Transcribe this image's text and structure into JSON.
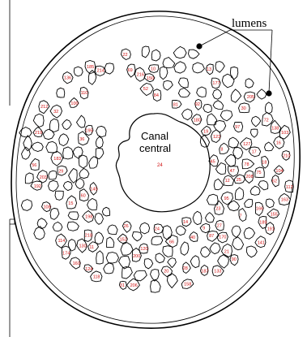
{
  "annotation": {
    "label": "lumens"
  },
  "canal": {
    "line1": "Canal",
    "line2": "central",
    "number": "24"
  },
  "cells": [
    {
      "n": "7"
    },
    {
      "n": "8"
    },
    {
      "n": "9"
    },
    {
      "n": "10"
    },
    {
      "n": "11"
    },
    {
      "n": "12"
    },
    {
      "n": "13"
    },
    {
      "n": "14"
    },
    {
      "n": "15"
    },
    {
      "n": "16"
    },
    {
      "n": "17"
    },
    {
      "n": "18"
    },
    {
      "n": "19"
    },
    {
      "n": "20"
    },
    {
      "n": "21"
    },
    {
      "n": "22"
    },
    {
      "n": "23"
    },
    {
      "n": "24"
    },
    {
      "n": "25"
    },
    {
      "n": "26"
    },
    {
      "n": "27"
    },
    {
      "n": "28"
    },
    {
      "n": "29"
    },
    {
      "n": "30"
    },
    {
      "n": "31"
    },
    {
      "n": "32"
    },
    {
      "n": "36"
    },
    {
      "n": "40"
    },
    {
      "n": "45"
    },
    {
      "n": "47"
    },
    {
      "n": "52"
    },
    {
      "n": "56"
    },
    {
      "n": "60"
    },
    {
      "n": "62"
    },
    {
      "n": "66"
    },
    {
      "n": "69"
    },
    {
      "n": "72"
    },
    {
      "n": "75"
    },
    {
      "n": "78"
    },
    {
      "n": "81"
    },
    {
      "n": "84"
    },
    {
      "n": "87"
    },
    {
      "n": "90"
    },
    {
      "n": "92"
    },
    {
      "n": "95"
    },
    {
      "n": "97"
    },
    {
      "n": "100"
    },
    {
      "n": "103"
    },
    {
      "n": "104"
    },
    {
      "n": "108"
    },
    {
      "n": "110"
    },
    {
      "n": "112"
    },
    {
      "n": "114"
    },
    {
      "n": "118"
    },
    {
      "n": "120"
    },
    {
      "n": "123"
    },
    {
      "n": "124"
    },
    {
      "n": "127"
    },
    {
      "n": "130"
    },
    {
      "n": "133"
    },
    {
      "n": "136"
    },
    {
      "n": "138"
    },
    {
      "n": "141"
    },
    {
      "n": "145"
    },
    {
      "n": "150"
    },
    {
      "n": "152"
    },
    {
      "n": "155"
    },
    {
      "n": "158"
    },
    {
      "n": "160"
    },
    {
      "n": "163"
    },
    {
      "n": "166"
    },
    {
      "n": "170"
    },
    {
      "n": "174"
    },
    {
      "n": "177"
    },
    {
      "n": "180"
    },
    {
      "n": "183"
    },
    {
      "n": "185"
    },
    {
      "n": "187"
    },
    {
      "n": "189"
    },
    {
      "n": "191"
    },
    {
      "n": "192"
    },
    {
      "n": "195"
    },
    {
      "n": "198"
    },
    {
      "n": "200"
    },
    {
      "n": "203"
    },
    {
      "n": "205"
    },
    {
      "n": "206"
    },
    {
      "n": "208"
    },
    {
      "n": "210"
    },
    {
      "n": "212"
    },
    {
      "n": "214"
    },
    {
      "n": "216"
    },
    {
      "n": "218"
    },
    {
      "n": "219"
    }
  ]
}
